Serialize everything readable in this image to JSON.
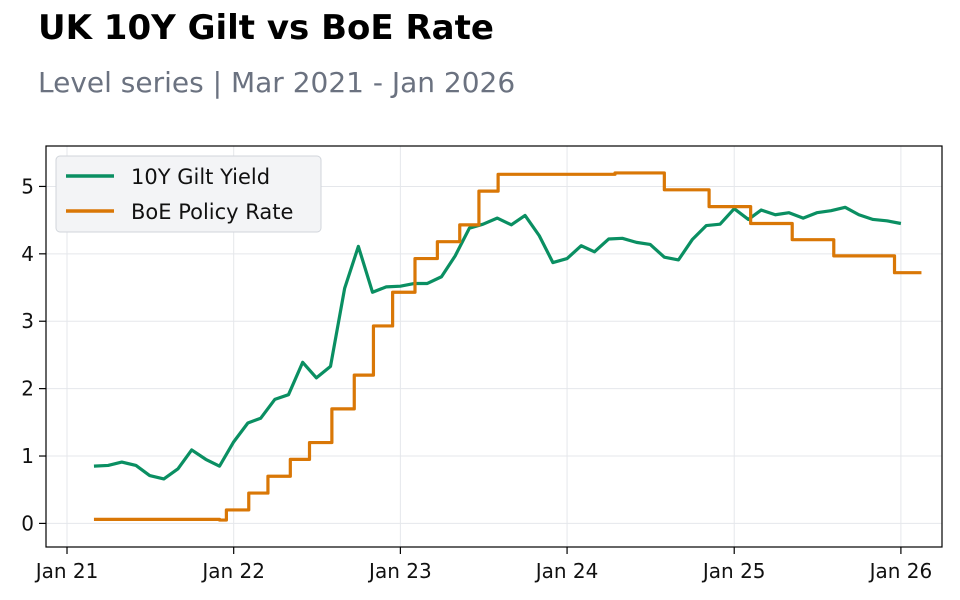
{
  "title": "UK 10Y Gilt vs BoE Rate",
  "subtitle": "Level series | Mar 2021 - Jan 2026",
  "chart_data": {
    "type": "line",
    "title": "UK 10Y Gilt vs BoE Rate",
    "subtitle": "Level series | Mar 2021 - Jan 2026",
    "xlabel": "",
    "ylabel": "",
    "xlim": [
      "2020-11-16",
      "2026-04-01"
    ],
    "ylim": [
      -0.35,
      5.6
    ],
    "x_ticks": [
      "2021-01-01",
      "2022-01-01",
      "2023-01-01",
      "2024-01-01",
      "2025-01-01",
      "2026-01-01"
    ],
    "x_tick_labels": [
      "Jan 21",
      "Jan 22",
      "Jan 23",
      "Jan 24",
      "Jan 25",
      "Jan 26"
    ],
    "y_ticks": [
      0,
      1,
      2,
      3,
      4,
      5
    ],
    "y_tick_labels": [
      "0",
      "1",
      "2",
      "3",
      "4",
      "5"
    ],
    "grid": true,
    "legend_position": "top-left",
    "series": [
      {
        "name": "10Y Gilt Yield",
        "color": "#0a8f62",
        "step": false,
        "points": [
          [
            "2021-03-01",
            0.85
          ],
          [
            "2021-04-01",
            0.86
          ],
          [
            "2021-05-01",
            0.91
          ],
          [
            "2021-06-01",
            0.86
          ],
          [
            "2021-07-01",
            0.71
          ],
          [
            "2021-08-01",
            0.66
          ],
          [
            "2021-09-01",
            0.81
          ],
          [
            "2021-10-01",
            1.09
          ],
          [
            "2021-11-01",
            0.95
          ],
          [
            "2021-12-01",
            0.85
          ],
          [
            "2022-01-01",
            1.21
          ],
          [
            "2022-02-01",
            1.49
          ],
          [
            "2022-03-01",
            1.56
          ],
          [
            "2022-04-01",
            1.84
          ],
          [
            "2022-05-01",
            1.91
          ],
          [
            "2022-06-01",
            2.39
          ],
          [
            "2022-07-01",
            2.16
          ],
          [
            "2022-08-01",
            2.33
          ],
          [
            "2022-09-01",
            3.49
          ],
          [
            "2022-10-01",
            4.11
          ],
          [
            "2022-11-01",
            3.43
          ],
          [
            "2022-12-01",
            3.51
          ],
          [
            "2023-01-01",
            3.52
          ],
          [
            "2023-02-01",
            3.56
          ],
          [
            "2023-03-01",
            3.56
          ],
          [
            "2023-04-01",
            3.66
          ],
          [
            "2023-05-01",
            3.97
          ],
          [
            "2023-06-01",
            4.38
          ],
          [
            "2023-07-01",
            4.44
          ],
          [
            "2023-08-01",
            4.53
          ],
          [
            "2023-09-01",
            4.43
          ],
          [
            "2023-10-01",
            4.57
          ],
          [
            "2023-11-01",
            4.27
          ],
          [
            "2023-12-01",
            3.87
          ],
          [
            "2024-01-01",
            3.93
          ],
          [
            "2024-02-01",
            4.12
          ],
          [
            "2024-03-01",
            4.03
          ],
          [
            "2024-04-01",
            4.22
          ],
          [
            "2024-05-01",
            4.23
          ],
          [
            "2024-06-01",
            4.17
          ],
          [
            "2024-07-01",
            4.14
          ],
          [
            "2024-08-01",
            3.95
          ],
          [
            "2024-09-01",
            3.91
          ],
          [
            "2024-10-01",
            4.21
          ],
          [
            "2024-11-01",
            4.42
          ],
          [
            "2024-12-01",
            4.44
          ],
          [
            "2025-01-01",
            4.67
          ],
          [
            "2025-02-01",
            4.51
          ],
          [
            "2025-03-01",
            4.65
          ],
          [
            "2025-04-01",
            4.58
          ],
          [
            "2025-05-01",
            4.61
          ],
          [
            "2025-06-01",
            4.53
          ],
          [
            "2025-07-01",
            4.61
          ],
          [
            "2025-08-01",
            4.64
          ],
          [
            "2025-09-01",
            4.69
          ],
          [
            "2025-10-01",
            4.58
          ],
          [
            "2025-11-01",
            4.51
          ],
          [
            "2025-12-01",
            4.49
          ],
          [
            "2026-01-01",
            4.45
          ]
        ]
      },
      {
        "name": "BoE Policy Rate",
        "color": "#d97706",
        "step": true,
        "points": [
          [
            "2021-03-01",
            0.06
          ],
          [
            "2021-12-01",
            0.05
          ],
          [
            "2021-12-16",
            0.2
          ],
          [
            "2022-02-03",
            0.45
          ],
          [
            "2022-03-17",
            0.7
          ],
          [
            "2022-05-05",
            0.95
          ],
          [
            "2022-06-16",
            1.2
          ],
          [
            "2022-08-04",
            1.7
          ],
          [
            "2022-09-22",
            2.2
          ],
          [
            "2022-11-03",
            2.93
          ],
          [
            "2022-12-15",
            3.43
          ],
          [
            "2023-02-02",
            3.93
          ],
          [
            "2023-03-23",
            4.18
          ],
          [
            "2023-05-11",
            4.43
          ],
          [
            "2023-06-22",
            4.93
          ],
          [
            "2023-08-03",
            5.18
          ],
          [
            "2024-04-15",
            5.2
          ],
          [
            "2024-08-01",
            4.95
          ],
          [
            "2024-11-07",
            4.7
          ],
          [
            "2025-02-06",
            4.45
          ],
          [
            "2025-05-08",
            4.21
          ],
          [
            "2025-08-07",
            3.97
          ],
          [
            "2025-12-18",
            3.72
          ],
          [
            "2026-02-15",
            3.72
          ]
        ]
      }
    ]
  }
}
